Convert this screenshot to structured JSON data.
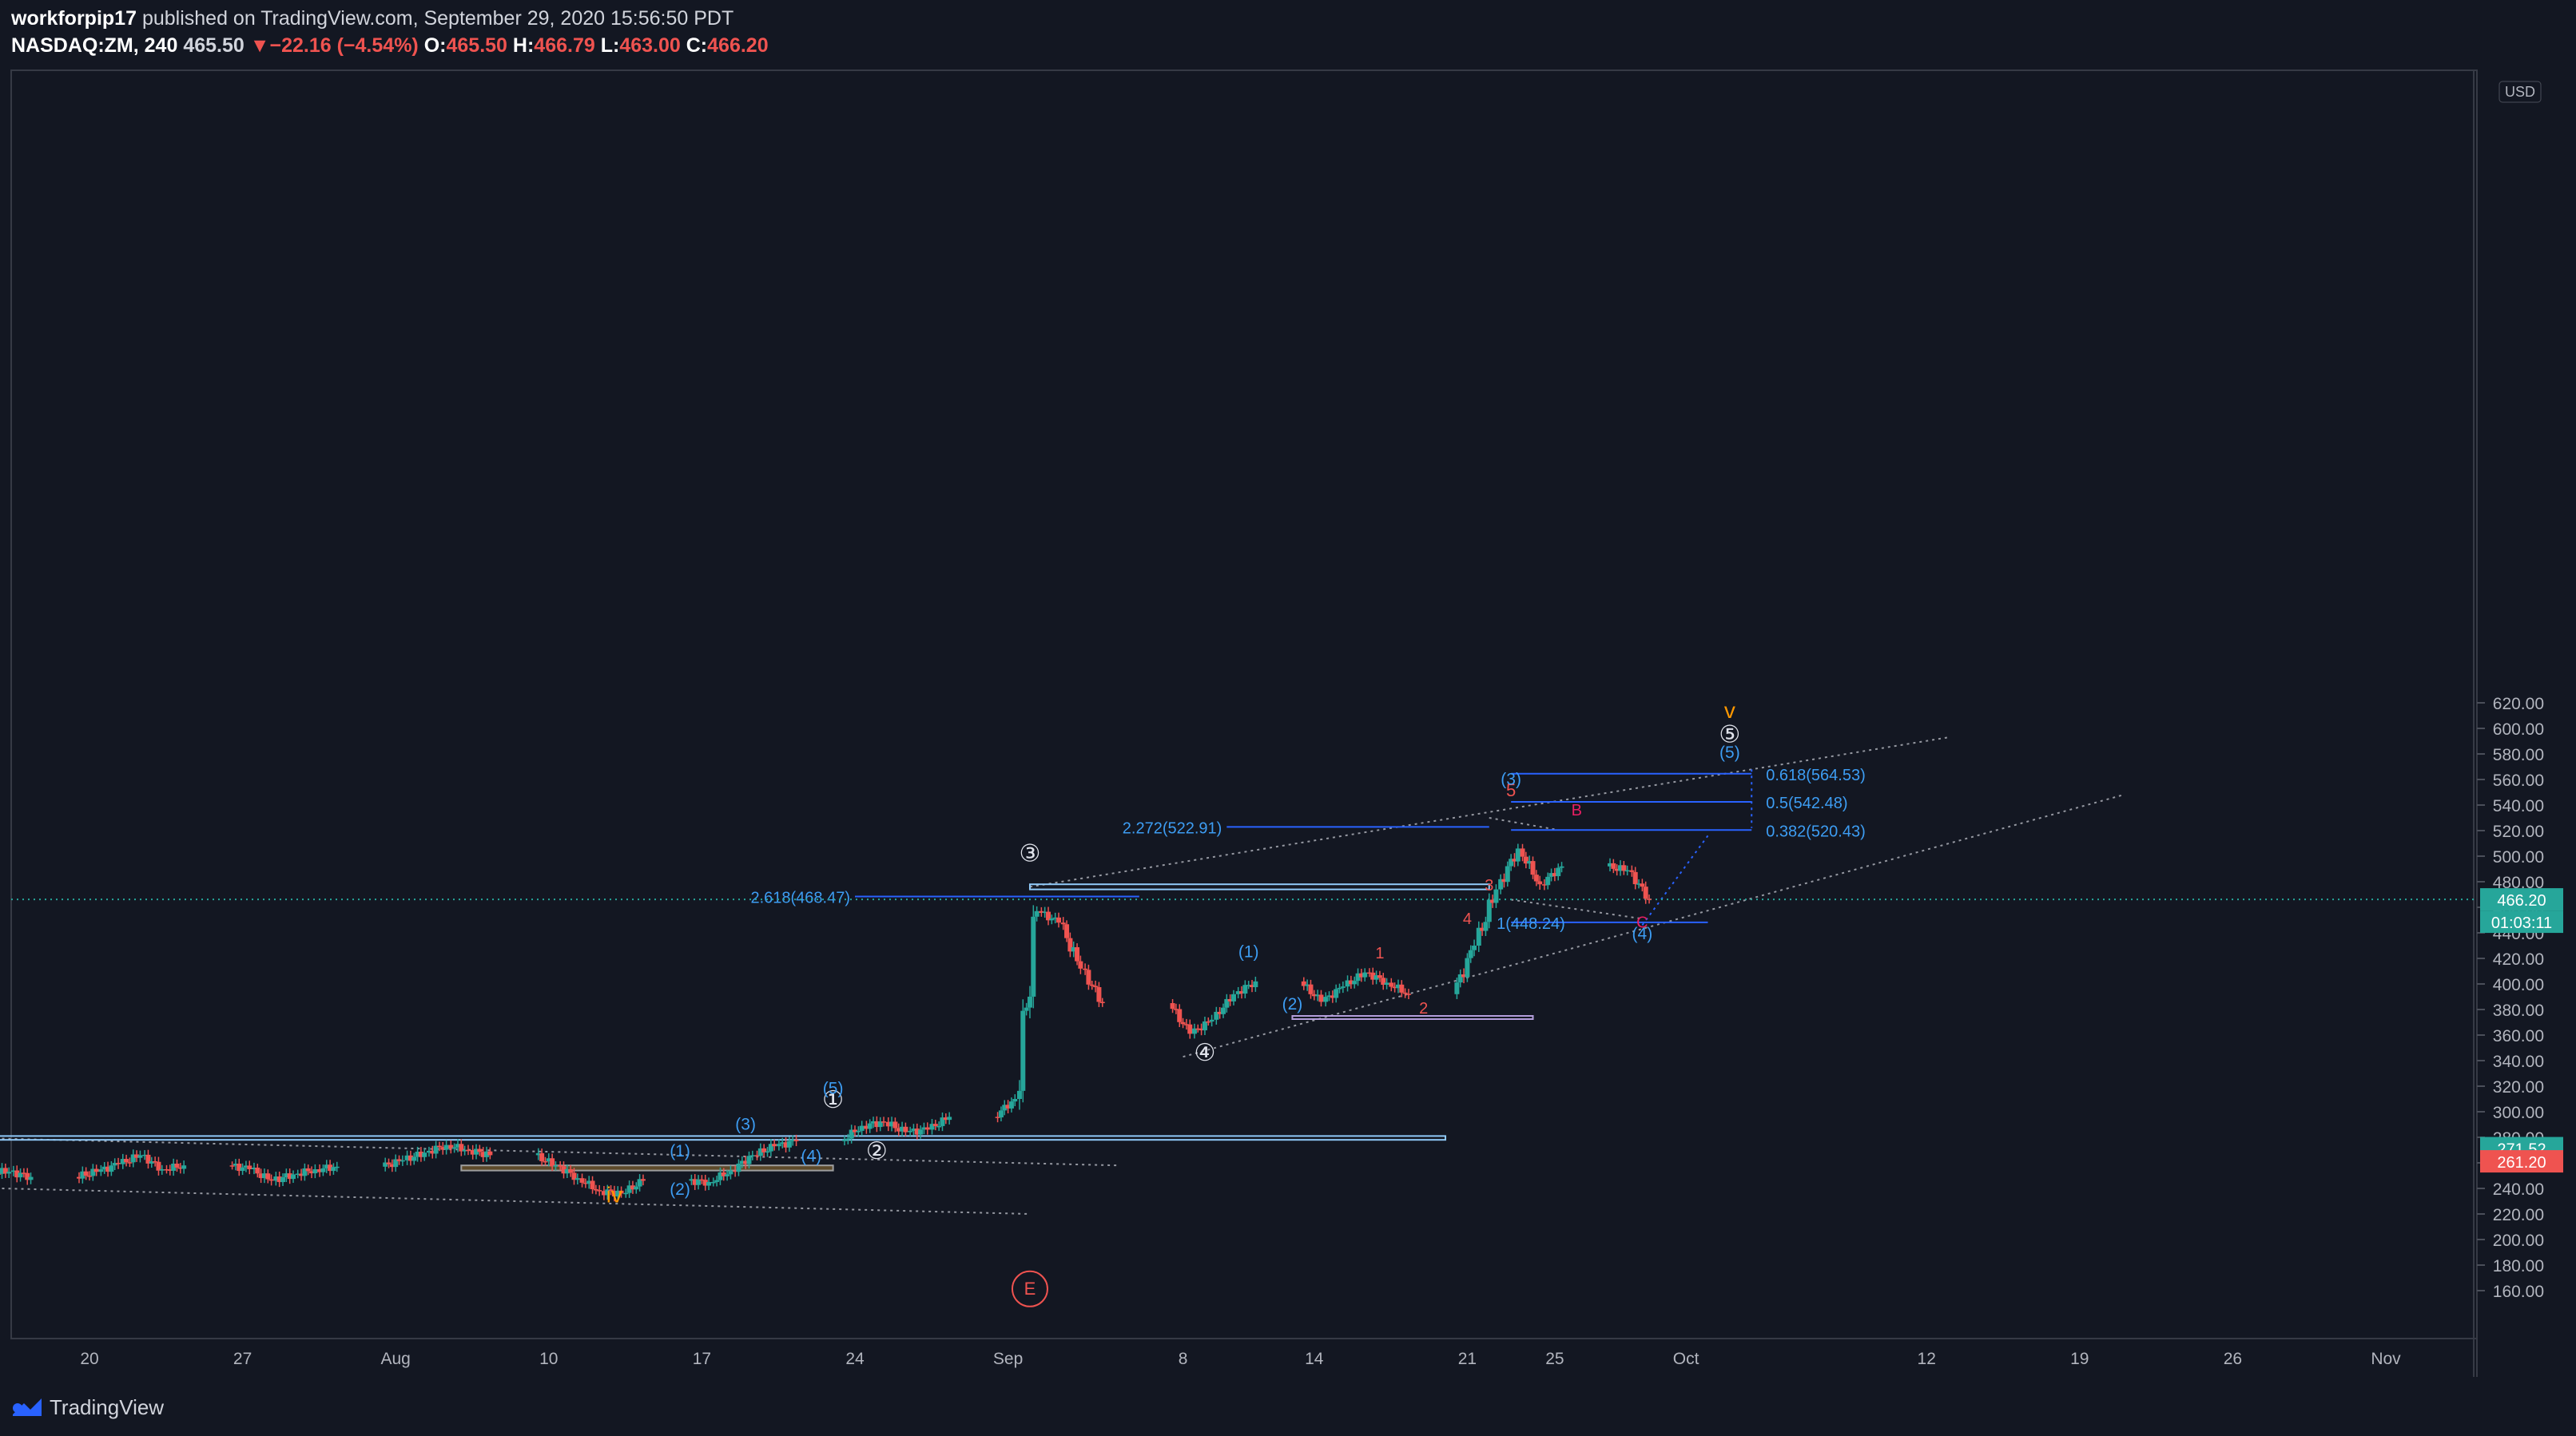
{
  "header": {
    "publisher": "workforpip17",
    "published_text": "published on TradingView.com, September 29, 2020 15:56:50 PDT",
    "symbol": "NASDAQ:ZM, 240",
    "last": "465.50",
    "change_arrow": "▼",
    "change": "−22.16 (−4.54%)",
    "o_label": "O:",
    "o": "465.50",
    "h_label": "H:",
    "h": "466.79",
    "l_label": "L:",
    "l": "463.00",
    "c_label": "C:",
    "c": "466.20"
  },
  "footer": {
    "brand": "TradingView",
    "logo_icon": "tradingview-logo-icon"
  },
  "colors": {
    "background": "#131722",
    "up": "#26a69a",
    "down": "#ef5350",
    "fib": "#2962ff",
    "label_blue": "#3d9df3",
    "accent_orange": "#ff9800",
    "accent_pink": "#e91e63"
  },
  "chart_data": {
    "type": "candlestick",
    "currency_label": "USD",
    "ylim": [
      145,
      630
    ],
    "y_ticks": [
      "160.00",
      "180.00",
      "200.00",
      "220.00",
      "240.00",
      "260.00",
      "280.00",
      "300.00",
      "320.00",
      "340.00",
      "360.00",
      "380.00",
      "400.00",
      "420.00",
      "440.00",
      "460.00",
      "480.00",
      "500.00",
      "520.00",
      "540.00",
      "560.00",
      "580.00",
      "600.00",
      "620.00"
    ],
    "x_ticks": [
      {
        "date": "2020-07-20",
        "label": "20"
      },
      {
        "date": "2020-07-27",
        "label": "27"
      },
      {
        "date": "2020-08-03",
        "label": "Aug"
      },
      {
        "date": "2020-08-10",
        "label": "10"
      },
      {
        "date": "2020-08-17",
        "label": "17"
      },
      {
        "date": "2020-08-24",
        "label": "24"
      },
      {
        "date": "2020-08-31",
        "label": "Sep"
      },
      {
        "date": "2020-09-08",
        "label": "8"
      },
      {
        "date": "2020-09-14",
        "label": "14"
      },
      {
        "date": "2020-09-21",
        "label": "21"
      },
      {
        "date": "2020-09-25",
        "label": "25"
      },
      {
        "date": "2020-10-01",
        "label": "Oct"
      },
      {
        "date": "2020-10-12",
        "label": "12"
      },
      {
        "date": "2020-10-19",
        "label": "19"
      },
      {
        "date": "2020-10-26",
        "label": "26"
      },
      {
        "date": "2020-11-02",
        "label": "Nov"
      }
    ],
    "price_badges": [
      {
        "value": 466.2,
        "label": "466.20",
        "color": "#26a69a"
      },
      {
        "value": "",
        "label": "01:03:11",
        "color": "#26a69a"
      },
      {
        "value": 271.52,
        "label": "271.52",
        "color": "#26a69a"
      },
      {
        "value": 261.2,
        "label": "261.20",
        "color": "#ef5350"
      }
    ],
    "last_price": 466.2,
    "closes": [
      [
        "2020-07-16",
        253
      ],
      [
        "2020-07-17",
        249
      ],
      [
        "2020-07-20",
        253
      ],
      [
        "2020-07-21",
        259
      ],
      [
        "2020-07-22",
        266
      ],
      [
        "2020-07-23",
        255
      ],
      [
        "2020-07-24",
        258
      ],
      [
        "2020-07-27",
        255
      ],
      [
        "2020-07-28",
        246
      ],
      [
        "2020-07-29",
        251
      ],
      [
        "2020-07-30",
        255
      ],
      [
        "2020-07-31",
        257
      ],
      [
        "2020-08-03",
        262
      ],
      [
        "2020-08-04",
        268
      ],
      [
        "2020-08-05",
        274
      ],
      [
        "2020-08-06",
        270
      ],
      [
        "2020-08-07",
        266
      ],
      [
        "2020-08-10",
        258
      ],
      [
        "2020-08-11",
        248
      ],
      [
        "2020-08-12",
        238
      ],
      [
        "2020-08-13",
        236
      ],
      [
        "2020-08-14",
        246
      ],
      [
        "2020-08-17",
        245
      ],
      [
        "2020-08-18",
        254
      ],
      [
        "2020-08-19",
        266
      ],
      [
        "2020-08-20",
        273
      ],
      [
        "2020-08-21",
        277
      ],
      [
        "2020-08-24",
        289
      ],
      [
        "2020-08-25",
        292
      ],
      [
        "2020-08-26",
        284
      ],
      [
        "2020-08-27",
        286
      ],
      [
        "2020-08-28",
        296
      ],
      [
        "2020-08-31",
        310
      ],
      [
        "2020-09-01",
        457
      ],
      [
        "2020-09-02",
        448
      ],
      [
        "2020-09-03",
        412
      ],
      [
        "2020-09-04",
        385
      ],
      [
        "2020-09-08",
        361
      ],
      [
        "2020-09-09",
        372
      ],
      [
        "2020-09-10",
        392
      ],
      [
        "2020-09-11",
        402
      ],
      [
        "2020-09-14",
        386
      ],
      [
        "2020-09-15",
        398
      ],
      [
        "2020-09-16",
        409
      ],
      [
        "2020-09-17",
        401
      ],
      [
        "2020-09-18",
        392
      ],
      [
        "2020-09-21",
        430
      ],
      [
        "2020-09-22",
        474
      ],
      [
        "2020-09-23",
        506
      ],
      [
        "2020-09-24",
        478
      ],
      [
        "2020-09-25",
        492
      ],
      [
        "2020-09-28",
        489
      ],
      [
        "2020-09-29",
        466.2
      ]
    ],
    "annotations": {
      "fib_levels": [
        {
          "text": "2.618(468.47)",
          "value": 468.47
        },
        {
          "text": "2.272(522.91)",
          "value": 522.91
        },
        {
          "text": "1(448.24)",
          "value": 448.24
        },
        {
          "text": "0.382(520.43)",
          "value": 520.43
        },
        {
          "text": "0.5(542.48)",
          "value": 542.48
        },
        {
          "text": "0.618(564.53)",
          "value": 564.53
        }
      ],
      "wave_labels": [
        "①",
        "②",
        "③",
        "④",
        "⑤",
        "(1)",
        "(2)",
        "(3)",
        "(4)",
        "(5)",
        "1",
        "2",
        "3",
        "4",
        "5",
        "B",
        "C",
        "iv",
        "v",
        "E"
      ]
    }
  }
}
